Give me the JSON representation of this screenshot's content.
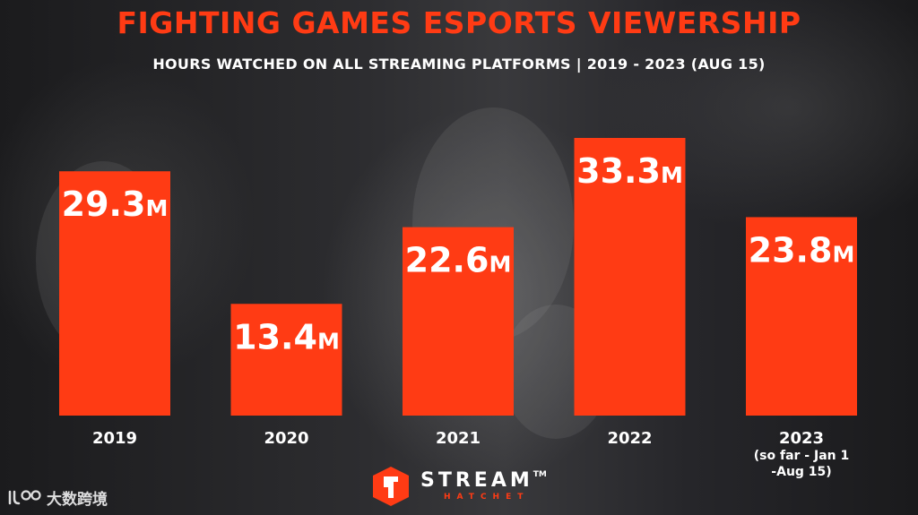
{
  "title": "FIGHTING GAMES ESPORTS VIEWERSHIP",
  "subtitle": "HOURS WATCHED ON ALL STREAMING PLATFORMS | 2019 - 2023 (AUG 15)",
  "colors": {
    "accent": "#ff3b14",
    "text": "#ffffff",
    "background": "#2a2a2d"
  },
  "chart_data": {
    "type": "bar",
    "title": "FIGHTING GAMES ESPORTS VIEWERSHIP",
    "subtitle": "HOURS WATCHED ON ALL STREAMING PLATFORMS | 2019 - 2023 (AUG 15)",
    "categories": [
      "2019",
      "2020",
      "2021",
      "2022",
      "2023"
    ],
    "category_notes": [
      "",
      "",
      "",
      "",
      "(so far - Jan 1 -Aug 15)"
    ],
    "category_note_lines": [
      [],
      [],
      [],
      [],
      [
        "(so far - Jan 1",
        "-Aug 15)"
      ]
    ],
    "values": [
      29.3,
      13.4,
      22.6,
      33.3,
      23.8
    ],
    "unit": "M",
    "data_labels": [
      "29.3",
      "13.4",
      "22.6",
      "33.3",
      "23.8"
    ],
    "xlabel": "",
    "ylabel": "",
    "ylim": [
      0,
      35
    ],
    "grid": false,
    "legend": "none"
  },
  "logo": {
    "name": "STREAM",
    "trademark": "TM",
    "sub": "HATCHET",
    "icon": "stream-hatchet-logo-icon"
  },
  "watermark": {
    "text": "大数跨境",
    "icon": "dashujuajing-logo-icon"
  }
}
